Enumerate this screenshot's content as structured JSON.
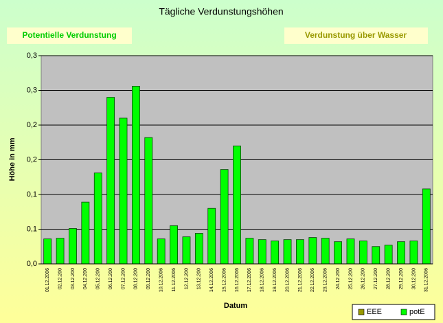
{
  "chart_data": {
    "type": "bar",
    "title": "Tägliche Verdunstungshöhen",
    "annotations": [
      "Potentielle Verdunstung",
      "Verdunstung über Wasser"
    ],
    "ylabel": "Höhe in mm",
    "xlabel": "Datum",
    "categories": [
      "01.12.2006",
      "02.12.200",
      "03.12.200",
      "04.12.200",
      "05.12.200",
      "06.12.200",
      "07.12.200",
      "08.12.200",
      "09.12.200",
      "10.12.2006",
      "11.12.2006",
      "12.12.200",
      "13.12.200",
      "14.12.2006",
      "15.12.2006",
      "16.12.2006",
      "17.12.2006",
      "18.12.2006",
      "19.12.2006",
      "20.12.2006",
      "21.12.2006",
      "22.12.2006",
      "23.12.2006",
      "24.12.200",
      "25.12.200",
      "26.12.200",
      "27.12.200",
      "28.12.200",
      "29.12.200",
      "30.12.200",
      "31.12.2006"
    ],
    "series": [
      {
        "name": "EEE",
        "color": "#999900",
        "values": [
          null,
          null,
          null,
          null,
          null,
          null,
          null,
          null,
          null,
          null,
          null,
          null,
          null,
          null,
          null,
          null,
          null,
          null,
          null,
          null,
          null,
          null,
          null,
          null,
          null,
          null,
          null,
          null,
          null,
          null,
          null
        ]
      },
      {
        "name": "potE",
        "color": "#00ff00",
        "values": [
          0.036,
          0.037,
          0.051,
          0.089,
          0.131,
          0.24,
          0.21,
          0.256,
          0.182,
          0.036,
          0.055,
          0.039,
          0.044,
          0.08,
          0.136,
          0.17,
          0.037,
          0.035,
          0.033,
          0.035,
          0.035,
          0.038,
          0.037,
          0.032,
          0.036,
          0.033,
          0.025,
          0.027,
          0.032,
          0.033,
          0.108
        ]
      }
    ],
    "ylim": [
      0,
      0.3
    ],
    "yticks": [
      {
        "value": 0,
        "label": "0,0"
      },
      {
        "value": 0.05,
        "label": "0,1"
      },
      {
        "value": 0.1,
        "label": "0,1"
      },
      {
        "value": 0.15,
        "label": "0,2"
      },
      {
        "value": 0.2,
        "label": "0,2"
      },
      {
        "value": 0.25,
        "label": "0,3"
      },
      {
        "value": 0.3,
        "label": "0,3"
      }
    ],
    "grid": true,
    "legend": "bottom-right"
  }
}
